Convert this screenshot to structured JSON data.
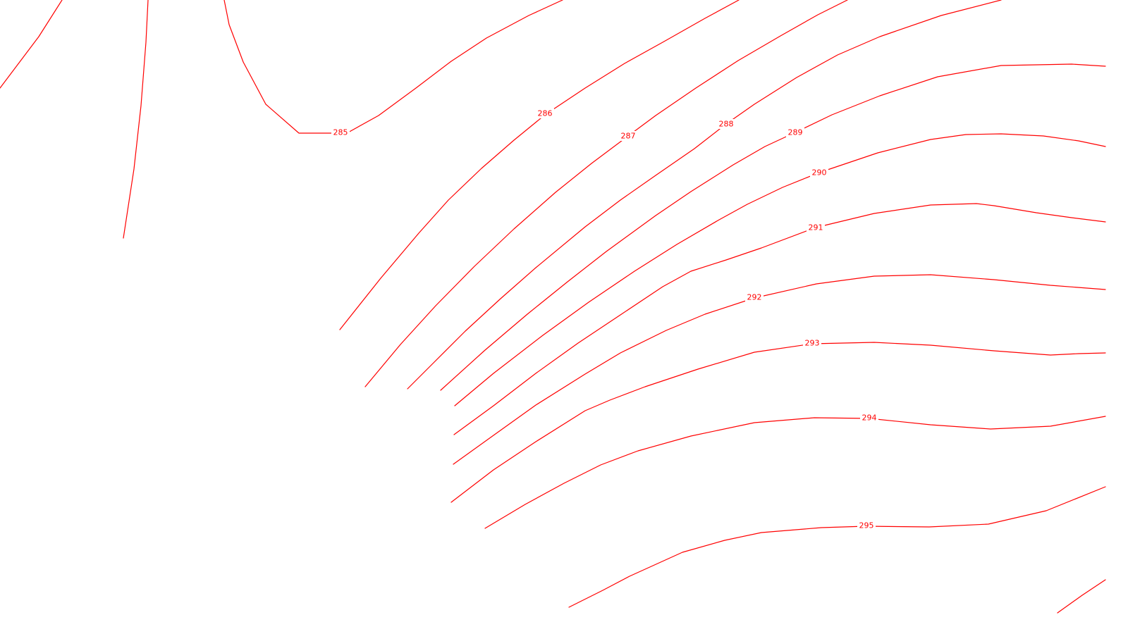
{
  "map": {
    "line_color": "#ff0000",
    "background": "#ffffff",
    "contour_labels": [
      {
        "id": "285",
        "text": "285"
      },
      {
        "id": "286",
        "text": "286"
      },
      {
        "id": "287",
        "text": "287"
      },
      {
        "id": "288",
        "text": "288"
      },
      {
        "id": "289",
        "text": "289"
      },
      {
        "id": "290",
        "text": "290"
      },
      {
        "id": "291",
        "text": "291"
      },
      {
        "id": "292",
        "text": "292"
      },
      {
        "id": "293",
        "text": "293"
      },
      {
        "id": "294",
        "text": "294"
      },
      {
        "id": "295",
        "text": "295"
      }
    ]
  }
}
